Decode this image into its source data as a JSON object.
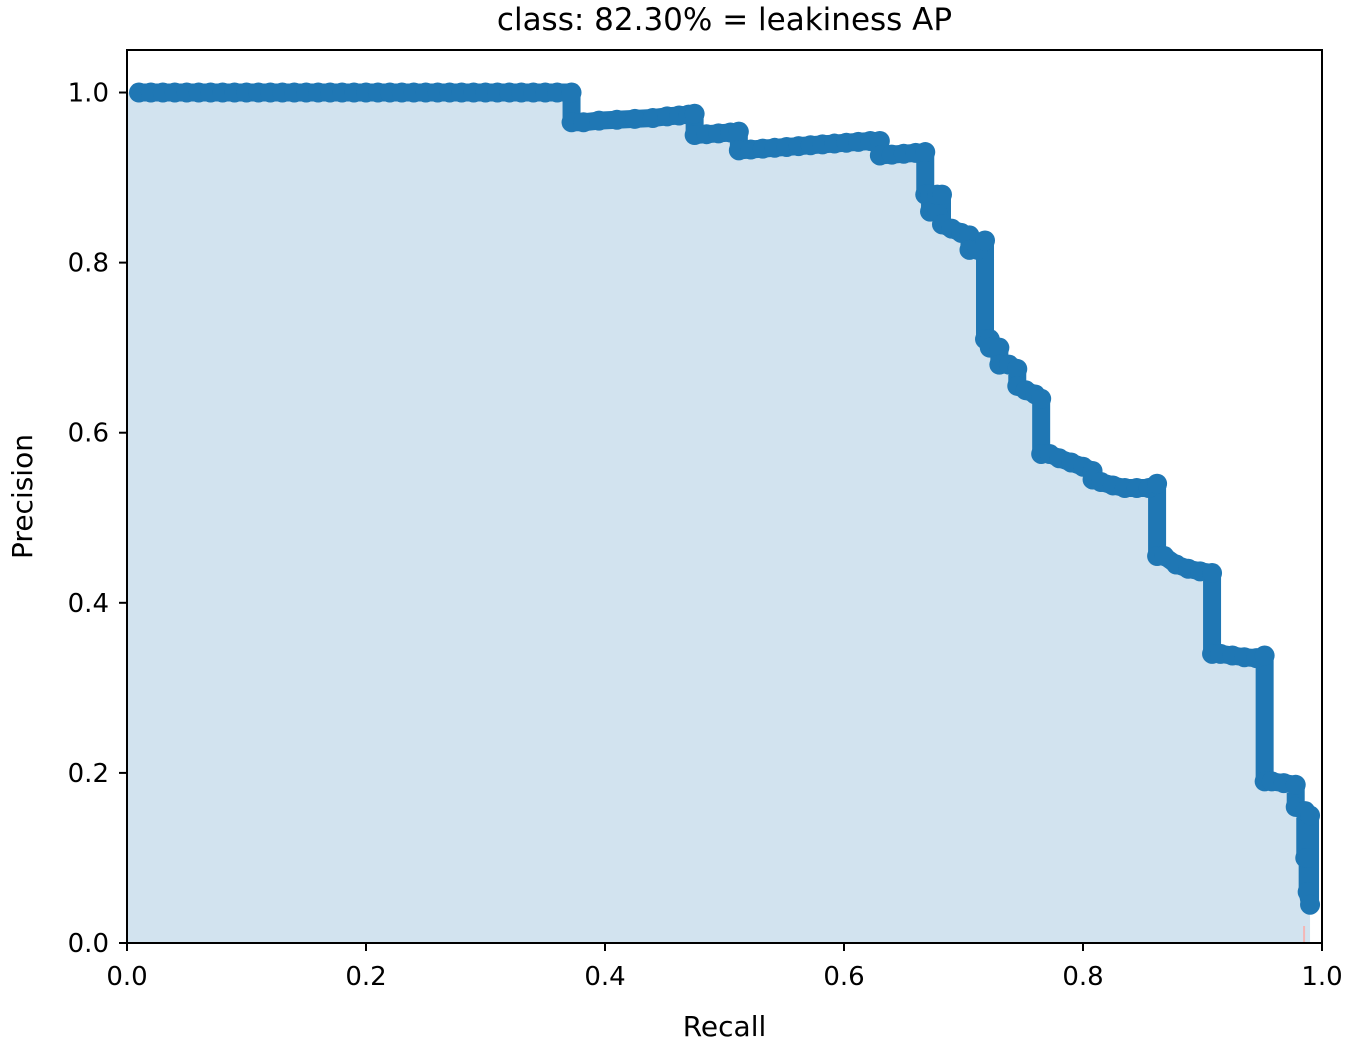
{
  "chart_data": {
    "type": "area",
    "title": "class: 82.30% = leakiness AP",
    "xlabel": "Recall",
    "ylabel": "Precision",
    "xlim": [
      0.0,
      1.0
    ],
    "ylim": [
      0.0,
      1.05
    ],
    "xticks": [
      "0.0",
      "0.2",
      "0.4",
      "0.6",
      "0.8",
      "1.0"
    ],
    "yticks": [
      "0.0",
      "0.2",
      "0.4",
      "0.6",
      "0.8",
      "1.0"
    ],
    "grid": false,
    "legend": "none",
    "colors": {
      "line": "#1f77b4",
      "fill": "#d2e3ef",
      "baseline": "#f4b6b6"
    },
    "series": [
      {
        "x": [
          0.01,
          0.02,
          0.03,
          0.04,
          0.05,
          0.06,
          0.07,
          0.08,
          0.09,
          0.1,
          0.11,
          0.12,
          0.13,
          0.14,
          0.15,
          0.16,
          0.17,
          0.18,
          0.19,
          0.2,
          0.21,
          0.22,
          0.23,
          0.24,
          0.25,
          0.26,
          0.27,
          0.28,
          0.29,
          0.3,
          0.31,
          0.32,
          0.33,
          0.34,
          0.35,
          0.36,
          0.372,
          0.372,
          0.382,
          0.395,
          0.41,
          0.425,
          0.44,
          0.452,
          0.462,
          0.47,
          0.475,
          0.475,
          0.485,
          0.495,
          0.505,
          0.512,
          0.512,
          0.522,
          0.532,
          0.542,
          0.552,
          0.562,
          0.572,
          0.582,
          0.592,
          0.602,
          0.612,
          0.622,
          0.63,
          0.63,
          0.64,
          0.65,
          0.66,
          0.668,
          0.668,
          0.672,
          0.672,
          0.678,
          0.678,
          0.682,
          0.682,
          0.69,
          0.698,
          0.705,
          0.705,
          0.712,
          0.718,
          0.718,
          0.722,
          0.722,
          0.73,
          0.73,
          0.738,
          0.745,
          0.745,
          0.752,
          0.76,
          0.765,
          0.765,
          0.772,
          0.78,
          0.79,
          0.8,
          0.808,
          0.808,
          0.815,
          0.825,
          0.835,
          0.845,
          0.855,
          0.862,
          0.862,
          0.868,
          0.878,
          0.888,
          0.898,
          0.908,
          0.908,
          0.915,
          0.925,
          0.935,
          0.945,
          0.952,
          0.952,
          0.958,
          0.968,
          0.978,
          0.978,
          0.986,
          0.986,
          0.988,
          0.988,
          0.99,
          0.99
        ],
        "y": [
          1.0,
          1.0,
          1.0,
          1.0,
          1.0,
          1.0,
          1.0,
          1.0,
          1.0,
          1.0,
          1.0,
          1.0,
          1.0,
          1.0,
          1.0,
          1.0,
          1.0,
          1.0,
          1.0,
          1.0,
          1.0,
          1.0,
          1.0,
          1.0,
          1.0,
          1.0,
          1.0,
          1.0,
          1.0,
          1.0,
          1.0,
          1.0,
          1.0,
          1.0,
          1.0,
          1.0,
          1.0,
          0.965,
          0.965,
          0.967,
          0.968,
          0.969,
          0.97,
          0.972,
          0.973,
          0.974,
          0.975,
          0.95,
          0.951,
          0.952,
          0.953,
          0.954,
          0.932,
          0.933,
          0.934,
          0.935,
          0.936,
          0.937,
          0.938,
          0.939,
          0.94,
          0.941,
          0.942,
          0.943,
          0.943,
          0.926,
          0.927,
          0.928,
          0.929,
          0.93,
          0.88,
          0.88,
          0.86,
          0.86,
          0.88,
          0.88,
          0.845,
          0.84,
          0.835,
          0.832,
          0.815,
          0.815,
          0.826,
          0.71,
          0.71,
          0.7,
          0.7,
          0.68,
          0.68,
          0.675,
          0.655,
          0.65,
          0.645,
          0.64,
          0.575,
          0.575,
          0.57,
          0.565,
          0.56,
          0.555,
          0.545,
          0.542,
          0.538,
          0.535,
          0.535,
          0.535,
          0.54,
          0.455,
          0.455,
          0.445,
          0.44,
          0.437,
          0.435,
          0.34,
          0.34,
          0.338,
          0.336,
          0.335,
          0.338,
          0.19,
          0.19,
          0.188,
          0.186,
          0.16,
          0.155,
          0.1,
          0.1,
          0.06,
          0.045,
          0.15
        ]
      }
    ]
  }
}
